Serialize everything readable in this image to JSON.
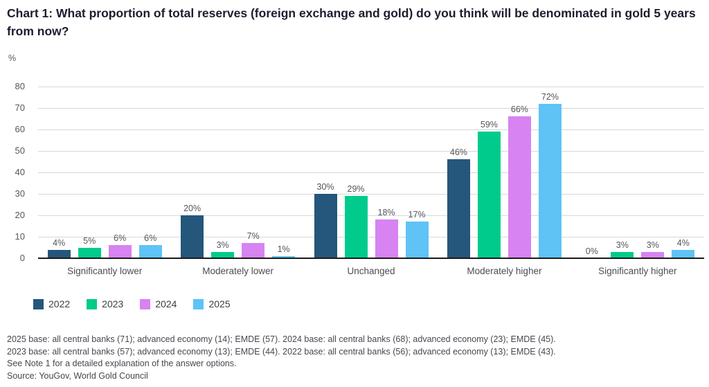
{
  "title": "Chart 1: What proportion of total reserves (foreign exchange and gold) do you think will be denominated in gold 5 years from now?",
  "chart_data": {
    "type": "bar",
    "unit_label": "%",
    "categories": [
      "Significantly lower",
      "Moderately lower",
      "Unchanged",
      "Moderately higher",
      "Significantly higher"
    ],
    "series": [
      {
        "name": "2022",
        "color": "#25567B",
        "values": [
          4,
          20,
          30,
          46,
          0
        ]
      },
      {
        "name": "2023",
        "color": "#00CB8C",
        "values": [
          5,
          3,
          29,
          59,
          3
        ]
      },
      {
        "name": "2024",
        "color": "#D783F2",
        "values": [
          6,
          7,
          18,
          66,
          3
        ]
      },
      {
        "name": "2025",
        "color": "#5FC3F6",
        "values": [
          6,
          1,
          17,
          72,
          4
        ]
      }
    ],
    "value_label_suffix": "%",
    "y_ticks": [
      80,
      70,
      60,
      50,
      40,
      30,
      20,
      10,
      0
    ],
    "ylim": [
      0,
      80
    ],
    "grid": true,
    "legend_position": "bottom"
  },
  "footnotes": {
    "0": "2025 base: all central banks (71); advanced economy (14); EMDE (57). 2024 base: all central banks (68); advanced economy (23); EMDE (45).",
    "1": "2023 base: all central banks (57); advanced economy (13); EMDE (44). 2022 base: all central banks (56); advanced economy (13); EMDE (43).",
    "2": "See Note 1 for a detailed explanation of the answer options.",
    "3": "Source: YouGov, World Gold Council"
  },
  "colors": {
    "gridline": "#d8d8d8",
    "baseline": "#1a1a1a",
    "title_text": "#1d1d30",
    "axis_text": "#56565e",
    "footnote_text": "#47474f"
  }
}
